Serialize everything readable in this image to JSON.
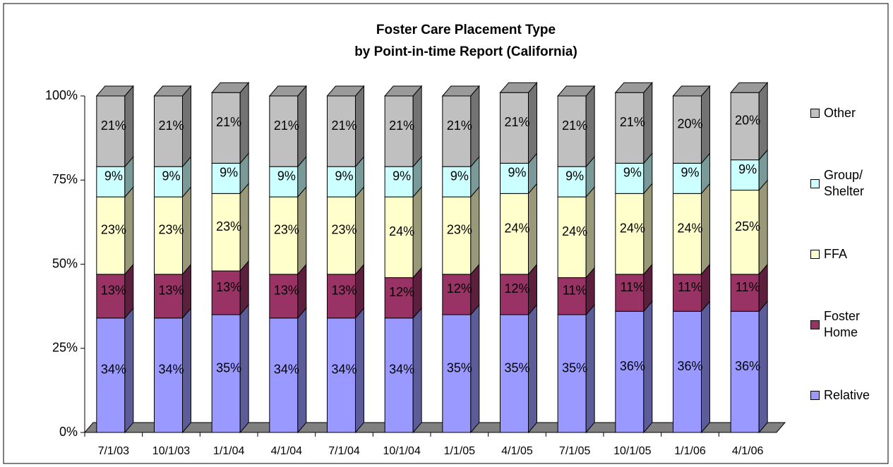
{
  "chart_data": {
    "type": "bar",
    "stacked": true,
    "title": "Foster Care Placement Type",
    "subtitle": "by Point-in-time Report (California)",
    "categories": [
      "7/1/03",
      "10/1/03",
      "1/1/04",
      "4/1/04",
      "7/1/04",
      "10/1/04",
      "1/1/05",
      "4/1/05",
      "7/1/05",
      "10/1/05",
      "1/1/06",
      "4/1/06"
    ],
    "series": [
      {
        "name": "Relative",
        "color": "#9999ff",
        "values": [
          34,
          34,
          35,
          34,
          34,
          34,
          35,
          35,
          35,
          36,
          36,
          36
        ],
        "value_labels": [
          "34%",
          "34%",
          "35%",
          "34%",
          "34%",
          "34%",
          "35%",
          "35%",
          "35%",
          "36%",
          "36%",
          "36%"
        ]
      },
      {
        "name": "Foster Home",
        "color": "#993366",
        "values": [
          13,
          13,
          13,
          13,
          13,
          12,
          12,
          12,
          11,
          11,
          11,
          11
        ],
        "value_labels": [
          "13%",
          "13%",
          "13%",
          "13%",
          "13%",
          "12%",
          "12%",
          "12%",
          "11%",
          "11%",
          "11%",
          "11%"
        ]
      },
      {
        "name": "FFA",
        "color": "#ffffcc",
        "values": [
          23,
          23,
          23,
          23,
          23,
          24,
          23,
          24,
          24,
          24,
          24,
          25
        ],
        "value_labels": [
          "23%",
          "23%",
          "23%",
          "23%",
          "23%",
          "24%",
          "23%",
          "24%",
          "24%",
          "24%",
          "24%",
          "25%"
        ]
      },
      {
        "name": "Group/ Shelter",
        "color": "#ccffff",
        "values": [
          9,
          9,
          9,
          9,
          9,
          9,
          9,
          9,
          9,
          9,
          9,
          9
        ],
        "value_labels": [
          "9%",
          "9%",
          "9%",
          "9%",
          "9%",
          "9%",
          "9%",
          "9%",
          "9%",
          "9%",
          "9%",
          "9%"
        ]
      },
      {
        "name": "Other",
        "color": "#c0c0c0",
        "values": [
          21,
          21,
          21,
          21,
          21,
          21,
          21,
          21,
          21,
          21,
          20,
          20
        ],
        "value_labels": [
          "21%",
          "21%",
          "21%",
          "21%",
          "21%",
          "21%",
          "21%",
          "21%",
          "21%",
          "21%",
          "20%",
          "20%"
        ]
      }
    ],
    "ylim": [
      0,
      100
    ],
    "yticks": [
      {
        "value": 0,
        "label": "0%"
      },
      {
        "value": 25,
        "label": "25%"
      },
      {
        "value": 50,
        "label": "50%"
      },
      {
        "value": 75,
        "label": "75%"
      },
      {
        "value": 100,
        "label": "100%"
      }
    ],
    "legend": "right",
    "grid": false
  }
}
